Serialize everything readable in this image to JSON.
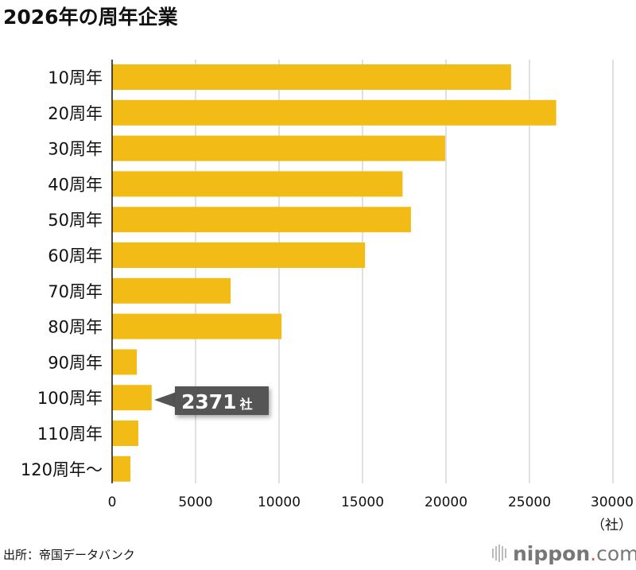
{
  "chart_data": {
    "type": "bar",
    "orientation": "horizontal",
    "title": "2026年の周年企業",
    "categories": [
      "10周年",
      "20周年",
      "30周年",
      "40周年",
      "50周年",
      "60周年",
      "70周年",
      "80周年",
      "90周年",
      "100周年",
      "110周年",
      "120周年～"
    ],
    "values": [
      23900,
      26600,
      19950,
      17400,
      17900,
      15150,
      7100,
      10150,
      1480,
      2371,
      1570,
      1100
    ],
    "xlim": [
      0,
      30000
    ],
    "xticks": [
      "0",
      "5000",
      "10000",
      "15000",
      "20000",
      "25000",
      "30000"
    ],
    "xunit": "（社）",
    "grid": true,
    "annotation": {
      "category": "100周年",
      "value_text": "2371",
      "unit": "社"
    },
    "bar_color": "#f2bb16",
    "source": "出所：帝国データバンク"
  },
  "brand": {
    "name": "nippon",
    "suffix": "com",
    "dot_color": "#e8532b"
  }
}
